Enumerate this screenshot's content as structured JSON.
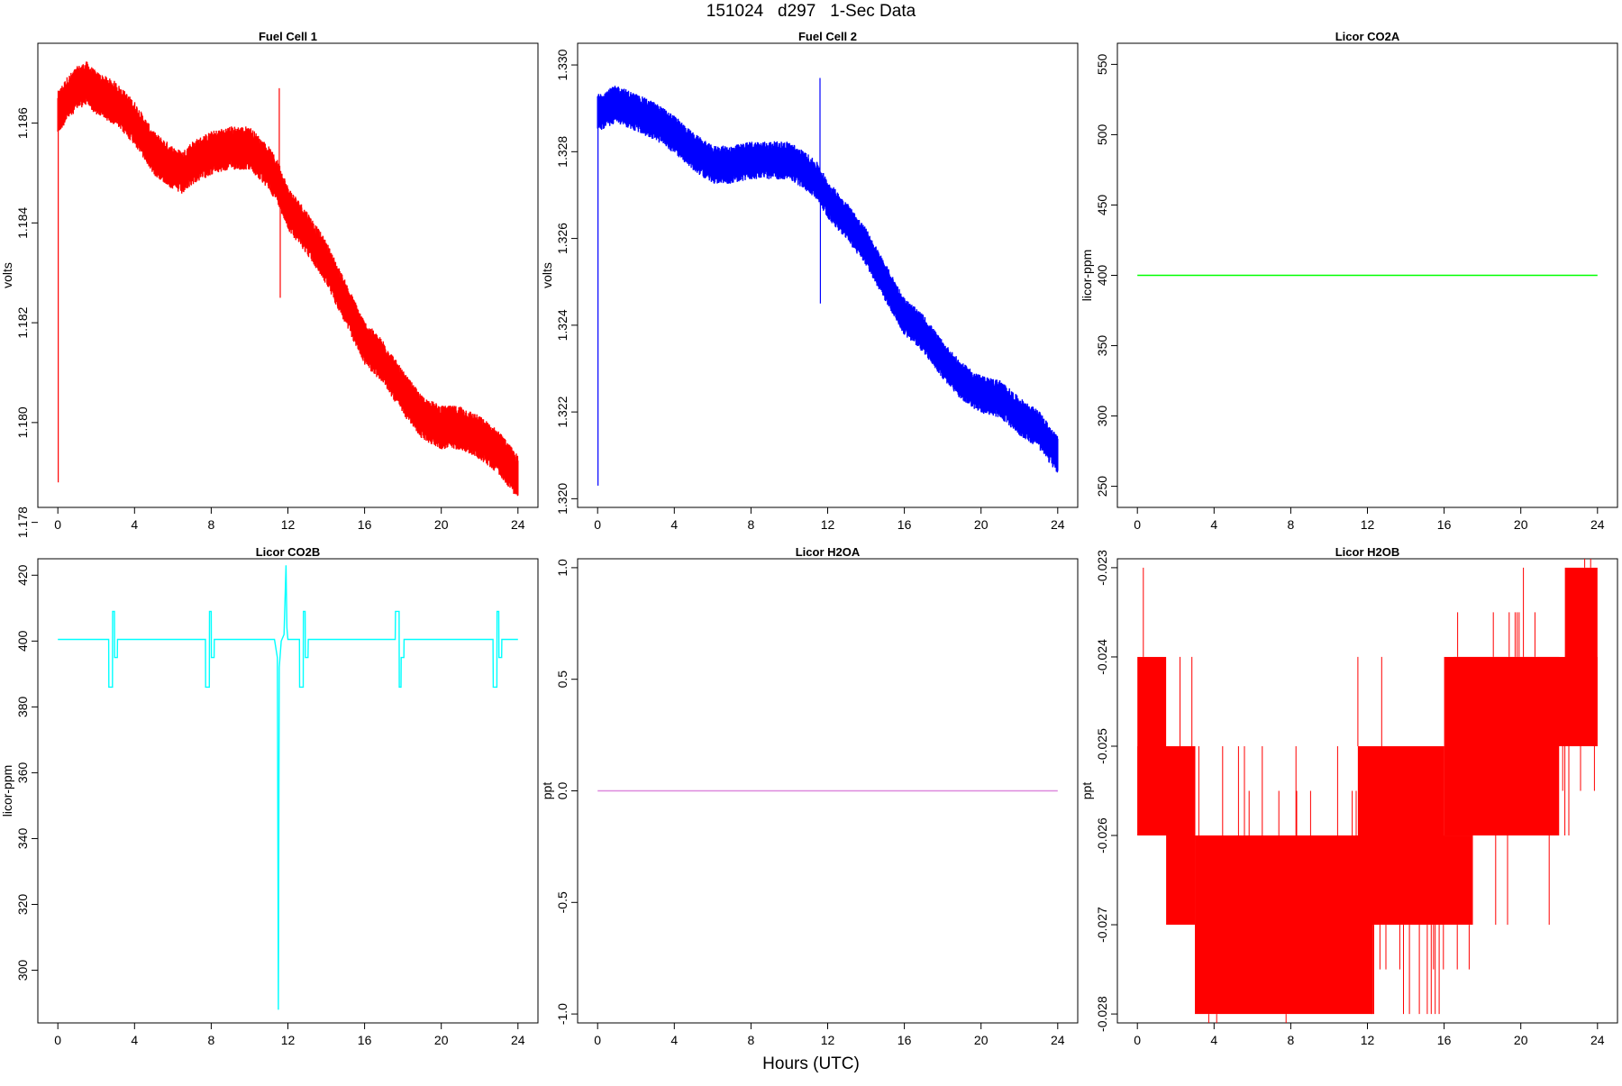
{
  "figure": {
    "title": "151024   d297   1-Sec Data",
    "xlabel": "Hours (UTC)"
  },
  "chart_data": [
    {
      "type": "line",
      "title": "Fuel Cell 1",
      "ylabel": "volts",
      "color": "#ff0000",
      "xlim": [
        0,
        24
      ],
      "ylim": [
        1.1783,
        1.1876
      ],
      "xticks": [
        "0",
        "4",
        "8",
        "12",
        "16",
        "20",
        "24"
      ],
      "yticks": [
        "1.178",
        "1.180",
        "1.182",
        "1.184",
        "1.186"
      ],
      "series": [
        {
          "x": [
            0,
            0.5,
            1,
            1.5,
            2,
            3,
            4,
            5,
            6,
            6.5,
            7,
            8,
            9,
            10,
            11,
            11.5,
            12,
            13,
            14,
            15,
            16,
            17,
            18,
            19,
            20,
            21,
            22,
            23,
            24
          ],
          "values": [
            1.1862,
            1.1865,
            1.1867,
            1.1868,
            1.1866,
            1.1864,
            1.186,
            1.1854,
            1.1851,
            1.185,
            1.1852,
            1.1854,
            1.1855,
            1.1855,
            1.1851,
            1.1848,
            1.1843,
            1.1838,
            1.1832,
            1.1824,
            1.1816,
            1.1812,
            1.1806,
            1.1801,
            1.1799,
            1.1799,
            1.1797,
            1.1794,
            1.1789
          ],
          "noise": 0.0004
        }
      ],
      "spikes": [
        {
          "x": 0.02,
          "value": 1.1788
        },
        {
          "x": 11.55,
          "value": 1.1867
        },
        {
          "x": 11.6,
          "value": 1.1825
        }
      ]
    },
    {
      "type": "line",
      "title": "Fuel Cell 2",
      "ylabel": "volts",
      "color": "#0000ff",
      "xlim": [
        0,
        24
      ],
      "ylim": [
        1.3198,
        1.3305
      ],
      "xticks": [
        "0",
        "4",
        "8",
        "12",
        "16",
        "20",
        "24"
      ],
      "yticks": [
        "1.320",
        "1.322",
        "1.324",
        "1.326",
        "1.328",
        "1.330"
      ],
      "series": [
        {
          "x": [
            0,
            0.5,
            1,
            1.5,
            2,
            3,
            4,
            5,
            6,
            6.5,
            7,
            8,
            9,
            10,
            11,
            11.5,
            12,
            13,
            14,
            15,
            16,
            17,
            18,
            19,
            20,
            21,
            22,
            23,
            24
          ],
          "values": [
            1.3289,
            1.329,
            1.3291,
            1.329,
            1.3289,
            1.3287,
            1.3284,
            1.328,
            1.3277,
            1.3277,
            1.3277,
            1.3278,
            1.3278,
            1.3278,
            1.3275,
            1.3273,
            1.3269,
            1.3264,
            1.3258,
            1.325,
            1.3242,
            1.3238,
            1.3232,
            1.3227,
            1.3224,
            1.3223,
            1.3219,
            1.3216,
            1.321
          ],
          "noise": 0.0004
        }
      ],
      "spikes": [
        {
          "x": 0.02,
          "value": 1.3203
        },
        {
          "x": 11.6,
          "value": 1.3297
        },
        {
          "x": 11.62,
          "value": 1.3245
        }
      ]
    },
    {
      "type": "line",
      "title": "Licor CO2A",
      "ylabel": "licor-ppm",
      "color": "#00ff00",
      "xlim": [
        0,
        24
      ],
      "ylim": [
        235,
        565
      ],
      "xticks": [
        "0",
        "4",
        "8",
        "12",
        "16",
        "20",
        "24"
      ],
      "yticks": [
        "250",
        "300",
        "350",
        "400",
        "450",
        "500",
        "550"
      ],
      "series": [
        {
          "x": [
            0,
            24
          ],
          "values": [
            400,
            400
          ],
          "noise": 0
        }
      ]
    },
    {
      "type": "line",
      "title": "Licor CO2B",
      "ylabel": "licor-ppm",
      "color": "#00ffff",
      "xlim": [
        0,
        24
      ],
      "ylim": [
        284,
        425
      ],
      "xticks": [
        "0",
        "4",
        "8",
        "12",
        "16",
        "20",
        "24"
      ],
      "yticks": [
        "300",
        "320",
        "340",
        "360",
        "380",
        "400",
        "420"
      ],
      "series": [
        {
          "x": [
            0,
            2.65,
            2.66,
            2.85,
            2.86,
            2.95,
            2.96,
            3.1,
            3.11,
            3.2,
            3.21,
            7.7,
            7.71,
            7.9,
            7.91,
            8.0,
            8.01,
            8.15,
            8.16,
            11.3,
            11.45,
            11.5,
            11.55,
            11.65,
            11.8,
            11.9,
            11.95,
            12.0,
            12.1,
            12.6,
            12.61,
            12.8,
            12.81,
            12.9,
            12.91,
            13.05,
            13.06,
            13.15,
            13.16,
            17.6,
            17.61,
            17.8,
            17.81,
            17.9,
            17.91,
            18.05,
            18.06,
            22.7,
            22.71,
            22.9,
            22.91,
            23.0,
            23.01,
            23.15,
            23.16,
            24
          ],
          "values": [
            400.5,
            400.5,
            386,
            386,
            409,
            409,
            395,
            395,
            400.5,
            400.5,
            400.5,
            400.5,
            386,
            386,
            409,
            409,
            395,
            395,
            400.5,
            400.5,
            395,
            288,
            392,
            400,
            402,
            423,
            404,
            400.5,
            400.5,
            400.5,
            386,
            386,
            409,
            409,
            395,
            395,
            400.5,
            400.5,
            400.5,
            400.5,
            409,
            409,
            386,
            386,
            395,
            395,
            400.5,
            400.5,
            386,
            386,
            409,
            409,
            395,
            395,
            400.5,
            400.5
          ],
          "noise": 0
        }
      ]
    },
    {
      "type": "line",
      "title": "Licor H2OA",
      "ylabel": "ppt",
      "color": "#dd88dd",
      "xlim": [
        0,
        24
      ],
      "ylim": [
        -1.04,
        1.04
      ],
      "xticks": [
        "0",
        "4",
        "8",
        "12",
        "16",
        "20",
        "24"
      ],
      "yticks": [
        "-1.0",
        "-0.5",
        "0.0",
        "0.5",
        "1.0"
      ],
      "series": [
        {
          "x": [
            0,
            24
          ],
          "values": [
            0,
            0
          ],
          "noise": 0
        }
      ]
    },
    {
      "type": "line",
      "title": "Licor H2OB",
      "ylabel": "ppt",
      "color": "#ff0000",
      "xlim": [
        0,
        24
      ],
      "ylim": [
        -0.0281,
        -0.0229
      ],
      "xticks": [
        "0",
        "4",
        "8",
        "12",
        "16",
        "20",
        "24"
      ],
      "yticks": [
        "-0.028",
        "-0.027",
        "-0.026",
        "-0.025",
        "-0.024",
        "-0.023"
      ],
      "bands": [
        {
          "x0": 0.0,
          "x1": 1.5,
          "low": -0.026,
          "high": -0.024
        },
        {
          "x0": 0.0,
          "x1": 1.6,
          "low": -0.026,
          "high": -0.025
        },
        {
          "x0": 1.5,
          "x1": 3.0,
          "low": -0.027,
          "high": -0.025
        },
        {
          "x0": 3.0,
          "x1": 12.3,
          "low": -0.028,
          "high": -0.026
        },
        {
          "x0": 5.0,
          "x1": 17.5,
          "low": -0.027,
          "high": -0.026
        },
        {
          "x0": 11.5,
          "x1": 16.0,
          "low": -0.027,
          "high": -0.025
        },
        {
          "x0": 16.0,
          "x1": 22.0,
          "low": -0.026,
          "high": -0.024
        },
        {
          "x0": 16.5,
          "x1": 24.0,
          "low": -0.025,
          "high": -0.024
        },
        {
          "x0": 22.3,
          "x1": 24.0,
          "low": -0.025,
          "high": -0.023
        }
      ]
    }
  ]
}
